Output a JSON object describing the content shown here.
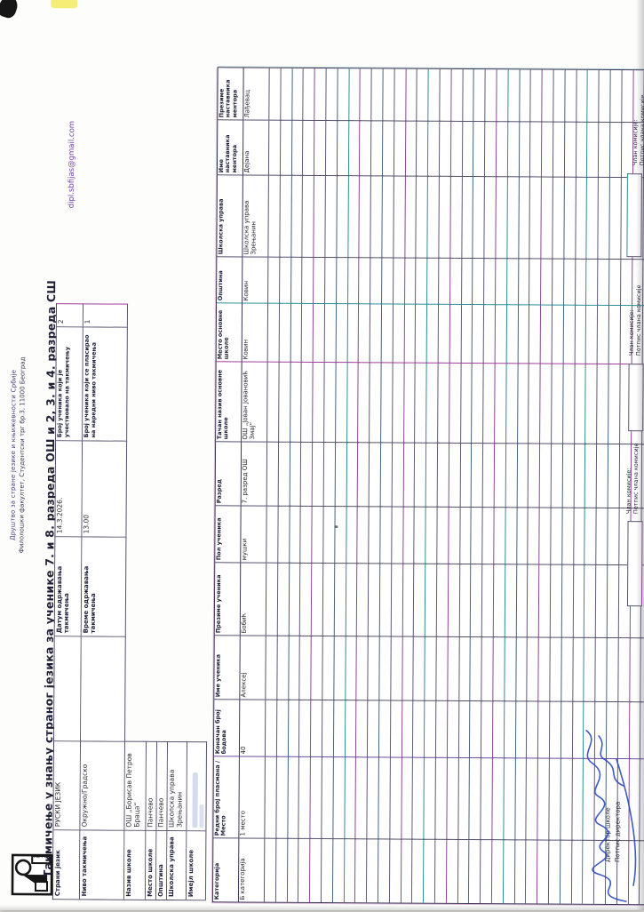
{
  "page": {
    "org_line1": "Друштво за стране језике и књижевности Србије",
    "org_line2": "Филолошки факултет, Студентски трг бр.3, 11000 Београд",
    "sender_email": "dipl.sbfijas@gmail.com",
    "title": "Такмичење у знању страног језика за ученике 7. и 8. разреда ОШ и 2, 3. и 4. разреда СШ",
    "logo_caption": "АС РС"
  },
  "info": {
    "left": [
      {
        "label": "Страни језик",
        "value": "РУСКИ ЈЕЗИК"
      },
      {
        "label": "Ниво такмичења",
        "value": "Окружно/Градско"
      },
      {
        "label": "Назив школе",
        "value": "ОШ „Борисав Петров Браца“"
      },
      {
        "label": "Место школе",
        "value": "Панчево"
      },
      {
        "label": "Општина",
        "value": "Панчево"
      },
      {
        "label": "Школска управа",
        "value": "Школска управа Зрењанин"
      },
      {
        "label": "Имејл школе",
        "value": ""
      }
    ],
    "mid": [
      {
        "label": "Датум одржавања такмичења",
        "value": "14.3.2026."
      },
      {
        "label": "Време одржавања такмичења",
        "value": "13.00"
      }
    ],
    "right": [
      {
        "label": "Број ученика који је учествовало на такмичењу",
        "value": "2"
      },
      {
        "label": "Број ученика који се пласирао на наредни ниво такмичења",
        "value": "1"
      }
    ]
  },
  "results_table": {
    "headers": [
      "Категорија",
      "Редни број пласмана / Место",
      "Коначан број бодова",
      "Име ученика",
      "Презиме ученика",
      "Пол ученика",
      "Разред",
      "Тачан назив основне школе",
      "Место основне школе",
      "Општина",
      "Школска управа",
      "Име наставника ментора",
      "Презиме наставника ментора"
    ],
    "row": [
      "Б категорија",
      "1 место",
      "40",
      "Алексеј",
      "Бобић",
      "мушки",
      "7. разред ОШ",
      "ОШ „Јован Јовановић Змај“",
      "Ковин",
      "Ковин",
      "Школска управа Зрењанин",
      "Дејана",
      "Лађевац"
    ],
    "empty_row_count": 35
  },
  "signatures": {
    "director_label": "Директор школе",
    "director_sub": "Потпис директора",
    "member_label": "Члан комисије:",
    "member_sub": "Потпис члана комисије"
  },
  "colors": {
    "grid_line": "#5a5270",
    "fringe_magenta": "#a0409a",
    "fringe_teal": "#2f8f96",
    "ink_blue": "#2b49c0",
    "email_purple": "#7040a8",
    "highlighter": "#f3ea55"
  }
}
